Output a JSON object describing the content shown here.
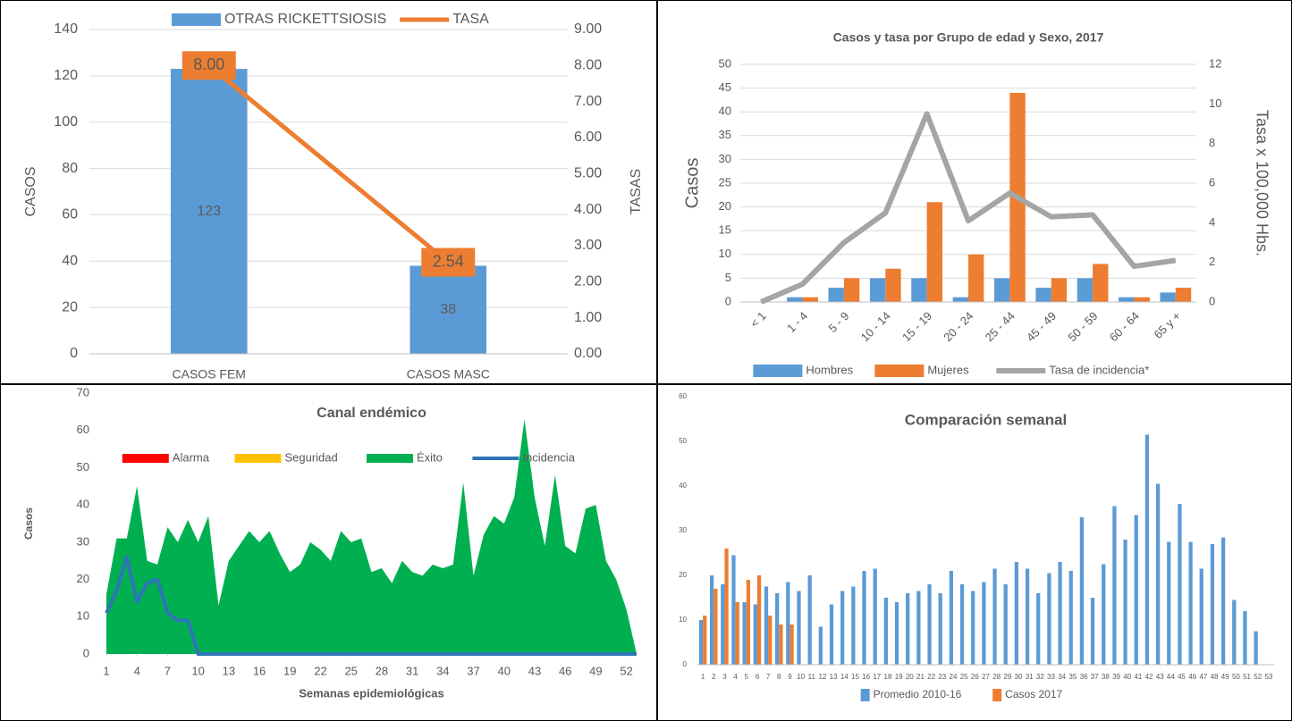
{
  "chart_data": [
    {
      "type": "bar",
      "categories": [
        "CASOS FEM",
        "CASOS MASC"
      ],
      "series": [
        {
          "name": "OTRAS RICKETTSIOSIS",
          "color": "#5b9bd5",
          "values": [
            123,
            38
          ]
        },
        {
          "name": "TASA",
          "type": "line",
          "axis": "y2",
          "color": "#ed7d31",
          "values": [
            8.0,
            2.54
          ],
          "value_labels": [
            "8.00",
            "2.54"
          ]
        }
      ],
      "ylim": [
        0,
        140
      ],
      "yticks": [
        0,
        20,
        40,
        60,
        80,
        100,
        120,
        140
      ],
      "y2lim": [
        0,
        9
      ],
      "y2ticks": [
        {
          "value": 0,
          "label": "0.00"
        },
        {
          "value": 1,
          "label": "1.00"
        },
        {
          "value": 2,
          "label": "2.00"
        },
        {
          "value": 3,
          "label": "3.00"
        },
        {
          "value": 4,
          "label": "4.00"
        },
        {
          "value": 5,
          "label": "5.00"
        },
        {
          "value": 6,
          "label": "6.00"
        },
        {
          "value": 7,
          "label": "7.00"
        },
        {
          "value": 8,
          "label": "8.00"
        },
        {
          "value": 9,
          "label": "9.00"
        }
      ],
      "ylabel": "CASOS",
      "y2label": "TASAS",
      "grid": true,
      "legend": "top",
      "data_labels": true
    },
    {
      "type": "bar",
      "title": "Casos y tasa por Grupo de edad y Sexo, 2017",
      "categories": [
        "< 1",
        "1 - 4",
        "5 - 9",
        "10 - 14",
        "15 - 19",
        "20 - 24",
        "25 - 44",
        "45 - 49",
        "50 - 59",
        "60 - 64",
        "65 y +"
      ],
      "series": [
        {
          "name": "Hombres",
          "color": "#5b9bd5",
          "values": [
            0,
            1,
            3,
            5,
            5,
            1,
            5,
            3,
            5,
            1,
            2
          ]
        },
        {
          "name": "Mujeres",
          "color": "#ed7d31",
          "values": [
            0,
            1,
            5,
            7,
            21,
            10,
            44,
            5,
            8,
            1,
            3
          ]
        },
        {
          "name": "Tasa de incidencia*",
          "type": "line",
          "axis": "y2",
          "color": "#a5a5a5",
          "values": [
            0,
            0.9,
            3,
            4.5,
            9.5,
            4.1,
            5.5,
            4.3,
            4.4,
            1.8,
            2.1
          ]
        }
      ],
      "ylim": [
        0,
        50
      ],
      "yticks": [
        0,
        5,
        10,
        15,
        20,
        25,
        30,
        35,
        40,
        45,
        50
      ],
      "y2lim": [
        0,
        12
      ],
      "y2ticks": [
        0,
        2,
        4,
        6,
        8,
        10,
        12
      ],
      "ylabel": "Casos",
      "y2label": "Tasa x 100,000 Hbs.",
      "grid": true,
      "legend": "bottom"
    },
    {
      "type": "area",
      "title": "Canal endémico",
      "x": [
        1,
        2,
        3,
        4,
        5,
        6,
        7,
        8,
        9,
        10,
        11,
        12,
        13,
        14,
        15,
        16,
        17,
        18,
        19,
        20,
        21,
        22,
        23,
        24,
        25,
        26,
        27,
        28,
        29,
        30,
        31,
        32,
        33,
        34,
        35,
        36,
        37,
        38,
        39,
        40,
        41,
        42,
        43,
        44,
        45,
        46,
        47,
        48,
        49,
        50,
        51,
        52,
        53
      ],
      "xlim": [
        1,
        53
      ],
      "xticks": [
        1,
        4,
        7,
        10,
        13,
        16,
        19,
        22,
        25,
        28,
        31,
        34,
        37,
        40,
        43,
        46,
        49,
        52
      ],
      "series": [
        {
          "name": "Alarma",
          "color": "#ff0000",
          "values": [
            null,
            null,
            null,
            null,
            null,
            null,
            null,
            null,
            null,
            null,
            null,
            null,
            null,
            null,
            null,
            null,
            null,
            null,
            null,
            null,
            null,
            null,
            null,
            null,
            null,
            null,
            null,
            null,
            null,
            null,
            null,
            null,
            null,
            null,
            null,
            null,
            null,
            null,
            null,
            null,
            null,
            null,
            null,
            null,
            null,
            null,
            null,
            null,
            null,
            null,
            null,
            null,
            null
          ]
        },
        {
          "name": "Seguridad",
          "color": "#ffc000",
          "values": [
            null,
            null,
            null,
            null,
            null,
            null,
            null,
            null,
            null,
            null,
            null,
            null,
            null,
            null,
            null,
            null,
            null,
            null,
            null,
            null,
            null,
            null,
            null,
            null,
            null,
            null,
            null,
            null,
            null,
            null,
            null,
            null,
            null,
            null,
            null,
            null,
            null,
            null,
            null,
            null,
            null,
            null,
            null,
            null,
            null,
            null,
            null,
            null,
            null,
            null,
            null,
            null,
            null
          ]
        },
        {
          "name": "Éxito",
          "color": "#00b050",
          "values": [
            16,
            31,
            31,
            45,
            25,
            24,
            34,
            30,
            36,
            30,
            37,
            13,
            25,
            29,
            33,
            30,
            33,
            27,
            22,
            24,
            30,
            28,
            25,
            33,
            30,
            31,
            22,
            23,
            19,
            25,
            22,
            21,
            24,
            23,
            24,
            46,
            21,
            32,
            37,
            35,
            42,
            63,
            42,
            29,
            48,
            29,
            27,
            39,
            40,
            25,
            20,
            12,
            0
          ]
        },
        {
          "name": "Incidencia",
          "type": "line",
          "color": "#2e75b6",
          "values": [
            11,
            17,
            26,
            14,
            19,
            20,
            11,
            9,
            9,
            0,
            0,
            0,
            0,
            0,
            0,
            0,
            0,
            0,
            0,
            0,
            0,
            0,
            0,
            0,
            0,
            0,
            0,
            0,
            0,
            0,
            0,
            0,
            0,
            0,
            0,
            0,
            0,
            0,
            0,
            0,
            0,
            0,
            0,
            0,
            0,
            0,
            0,
            0,
            0,
            0,
            0,
            0,
            0
          ]
        }
      ],
      "ylim": [
        0,
        70
      ],
      "yticks": [
        0,
        10,
        20,
        30,
        40,
        50,
        60,
        70
      ],
      "xlabel": "Semanas epidemiológicas",
      "ylabel": "Casos",
      "grid": false,
      "legend": "top"
    },
    {
      "type": "bar",
      "title": "Comparación semanal",
      "categories": [
        "1",
        "2",
        "3",
        "4",
        "5",
        "6",
        "7",
        "8",
        "9",
        "10",
        "11",
        "12",
        "13",
        "14",
        "15",
        "16",
        "17",
        "18",
        "19",
        "20",
        "21",
        "22",
        "23",
        "24",
        "25",
        "26",
        "27",
        "28",
        "29",
        "30",
        "31",
        "32",
        "33",
        "34",
        "35",
        "36",
        "37",
        "38",
        "39",
        "40",
        "41",
        "42",
        "43",
        "44",
        "45",
        "46",
        "47",
        "48",
        "49",
        "50",
        "51",
        "52",
        "53"
      ],
      "series": [
        {
          "name": "Promedio 2010-16",
          "color": "#5b9bd5",
          "values": [
            10,
            20,
            18,
            24.5,
            14,
            13.5,
            17.5,
            16,
            18.5,
            16.5,
            20,
            8.5,
            13.5,
            16.5,
            17.5,
            21,
            21.5,
            15,
            14,
            16,
            16.5,
            18,
            16,
            21,
            18,
            16.5,
            18.5,
            21.5,
            18,
            23,
            21.5,
            16,
            20.5,
            23,
            21,
            33,
            15,
            22.5,
            35.5,
            28,
            33.5,
            51.5,
            40.5,
            27.5,
            36,
            27.5,
            21.5,
            27,
            28.5,
            14.5,
            12,
            7.5,
            null
          ]
        },
        {
          "name": "Casos 2017",
          "color": "#ed7d31",
          "values": [
            11,
            17,
            26,
            14,
            19,
            20,
            11,
            9,
            9,
            null,
            null,
            null,
            null,
            null,
            null,
            null,
            null,
            null,
            null,
            null,
            null,
            null,
            null,
            null,
            null,
            null,
            null,
            null,
            null,
            null,
            null,
            null,
            null,
            null,
            null,
            null,
            null,
            null,
            null,
            null,
            null,
            null,
            null,
            null,
            null,
            null,
            null,
            null,
            null,
            null,
            null,
            null,
            null
          ]
        }
      ],
      "ylim": [
        0,
        60
      ],
      "yticks": [
        0,
        10,
        20,
        30,
        40,
        50,
        60
      ],
      "grid": false,
      "legend": "bottom"
    }
  ]
}
